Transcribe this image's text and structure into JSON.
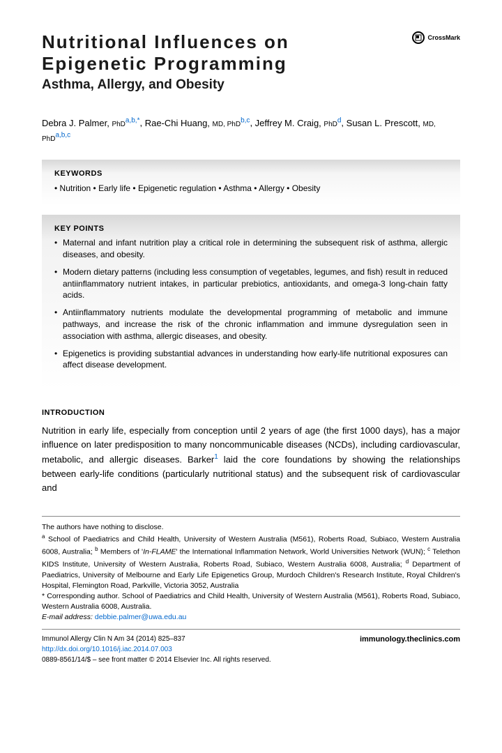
{
  "title_line1": "Nutritional Influences on",
  "title_line2": "Epigenetic Programming",
  "subtitle": "Asthma, Allergy, and Obesity",
  "crossmark_label": "CrossMark",
  "authors": [
    {
      "name": "Debra J. Palmer",
      "degree": "PhD",
      "aff": "a,b,",
      "star": "*"
    },
    {
      "name": "Rae-Chi Huang",
      "degree": "MD, PhD",
      "aff": "b,c",
      "star": ""
    },
    {
      "name": "Jeffrey M. Craig",
      "degree": "PhD",
      "aff": "d",
      "star": ""
    },
    {
      "name": "Susan L. Prescott",
      "degree": "MD, PhD",
      "aff": "a,b,c",
      "star": ""
    }
  ],
  "keywords_heading": "KEYWORDS",
  "keywords_line": "• Nutrition • Early life • Epigenetic regulation • Asthma • Allergy • Obesity",
  "keypoints_heading": "KEY POINTS",
  "keypoints": [
    "Maternal and infant nutrition play a critical role in determining the subsequent risk of asthma, allergic diseases, and obesity.",
    "Modern dietary patterns (including less consumption of vegetables, legumes, and fish) result in reduced antiinflammatory nutrient intakes, in particular prebiotics, antioxidants, and omega-3 long-chain fatty acids.",
    "Antiinflammatory nutrients modulate the developmental programming of metabolic and immune pathways, and increase the risk of the chronic inflammation and immune dysregulation seen in association with asthma, allergic diseases, and obesity.",
    "Epigenetics is providing substantial advances in understanding how early-life nutritional exposures can affect disease development."
  ],
  "intro_heading": "INTRODUCTION",
  "intro_para_pre": "Nutrition in early life, especially from conception until 2 years of age (the first 1000 days), has a major influence on later predisposition to many noncommunicable diseases (NCDs), including cardiovascular, metabolic, and allergic diseases. Barker",
  "intro_ref": "1",
  "intro_para_post": " laid the core foundations by showing the relationships between early-life conditions (particularly nutritional status) and the subsequent risk of cardiovascular and",
  "disclosure": "The authors have nothing to disclose.",
  "affiliations": "ᵃ School of Paediatrics and Child Health, University of Western Australia (M561), Roberts Road, Subiaco, Western Australia 6008, Australia; ᵇ Members of 'In-FLAME' the International Inflammation Network, World Universities Network (WUN); ᶜ Telethon KIDS Institute, University of Western Australia, Roberts Road, Subiaco, Western Australia 6008, Australia; ᵈ Department of Paediatrics, University of Melbourne and Early Life Epigenetics Group, Murdoch Children's Research Institute, Royal Children's Hospital, Flemington Road, Parkville, Victoria 3052, Australia",
  "corresponding": "* Corresponding author. School of Paediatrics and Child Health, University of Western Australia (M561), Roberts Road, Subiaco, Western Australia 6008, Australia.",
  "email_label": "E-mail address:",
  "email": "debbie.palmer@uwa.edu.au",
  "journal_line": "Immunol Allergy Clin N Am 34 (2014) 825–837",
  "doi": "http://dx.doi.org/10.1016/j.iac.2014.07.003",
  "site": "immunology.theclinics.com",
  "copyright": "0889-8561/14/$ – see front matter © 2014 Elsevier Inc. All rights reserved.",
  "colors": {
    "link": "#0066cc",
    "box_grad_top": "#d8d8d8",
    "box_grad_bottom": "#ffffff",
    "rule": "#888888"
  }
}
